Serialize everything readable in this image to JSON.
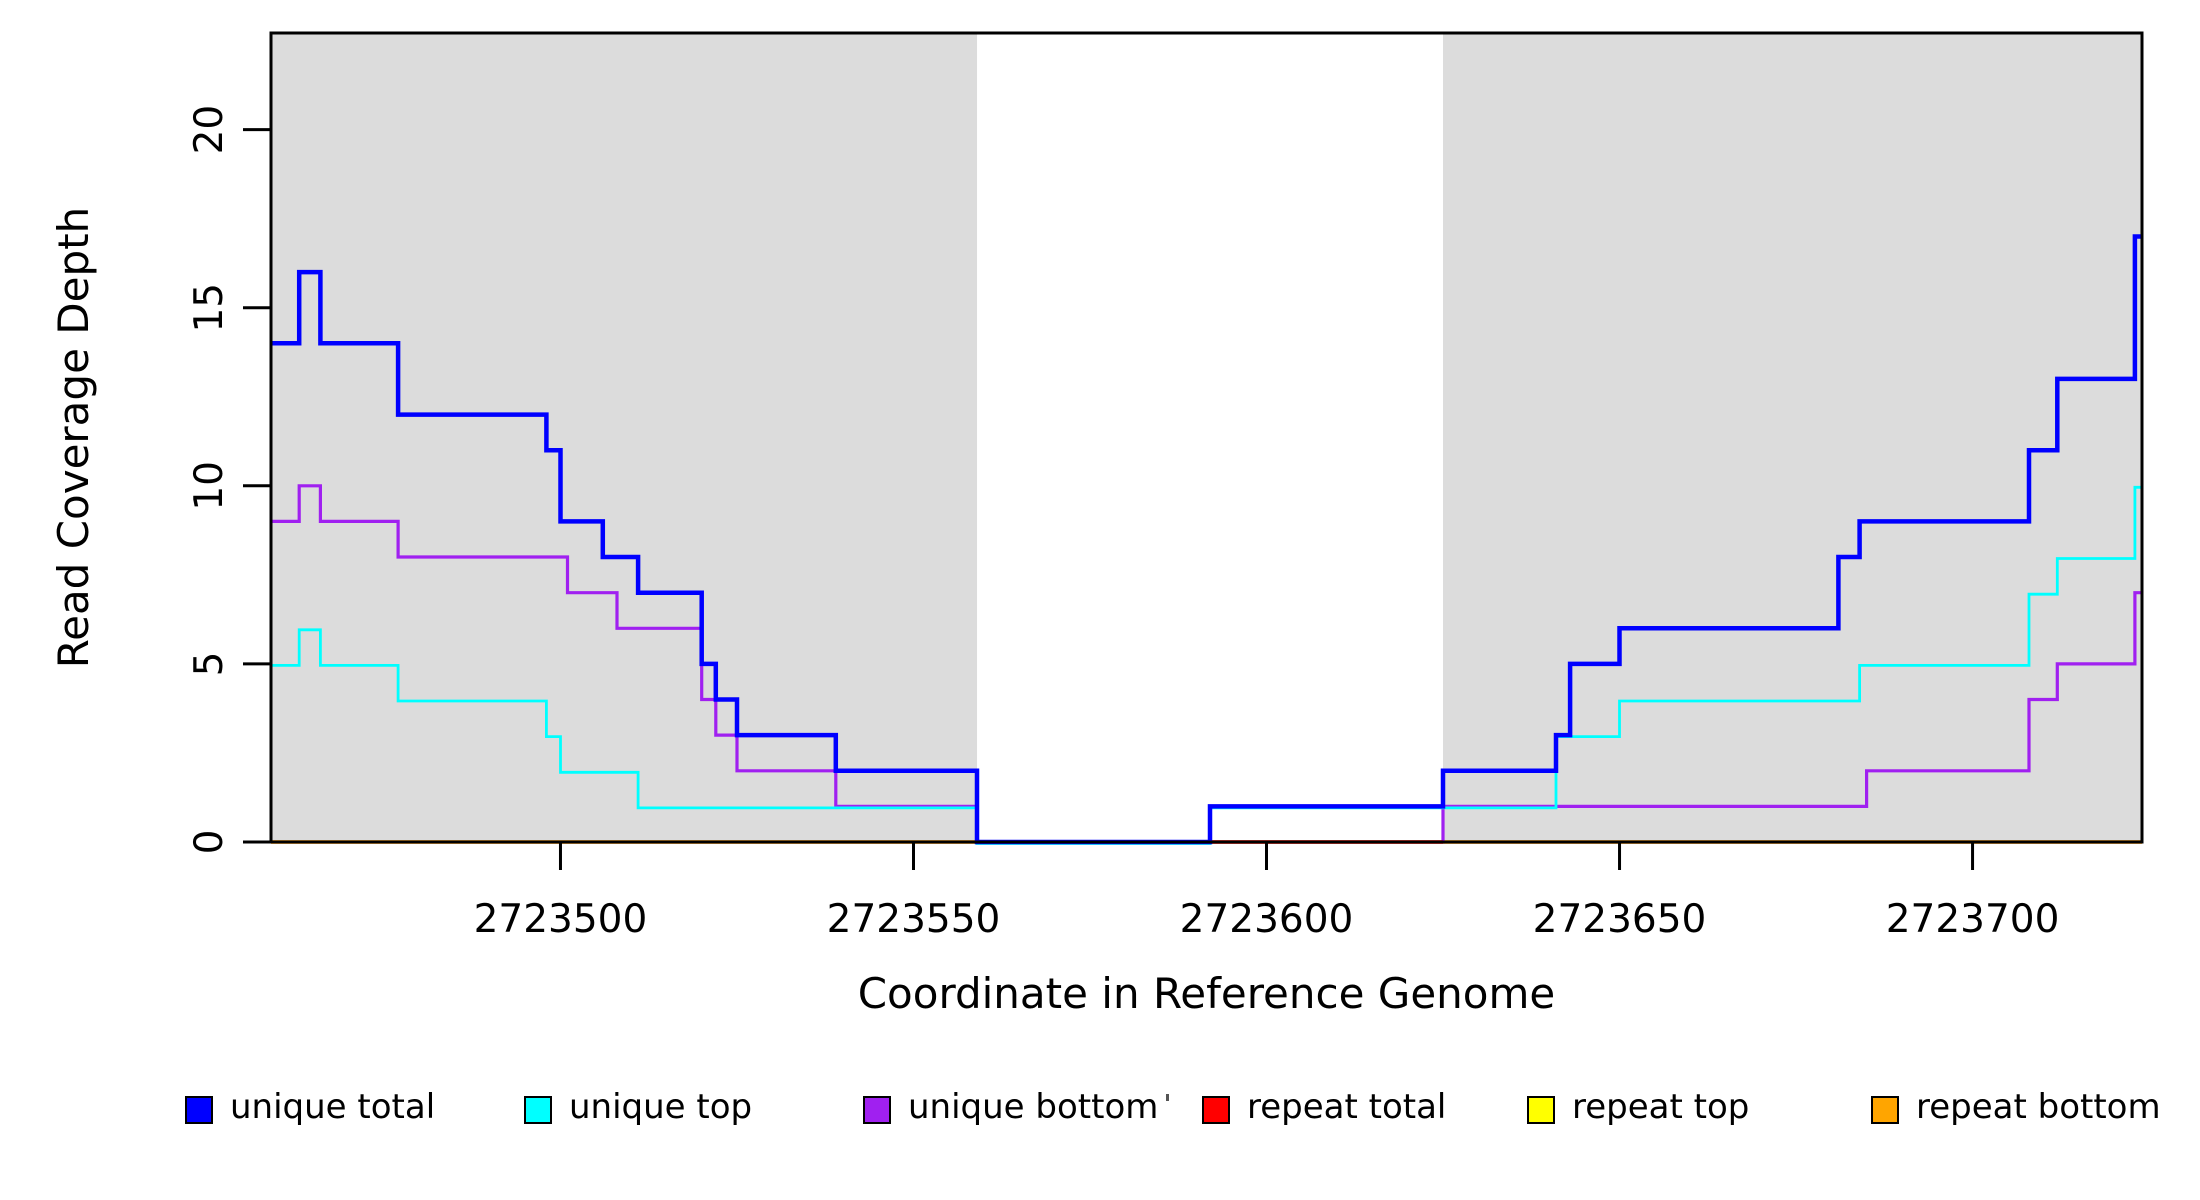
{
  "chart_data": {
    "type": "line",
    "subtype": "step",
    "title": "",
    "xlabel": "Coordinate in Reference Genome",
    "ylabel": "Read Coverage Depth",
    "x_domain": [
      2723459,
      2723724
    ],
    "y_domain": [
      0,
      22.7
    ],
    "grid": false,
    "x_ticks": [
      {
        "value": 2723500,
        "label": "2723500"
      },
      {
        "value": 2723550,
        "label": "2723550"
      },
      {
        "value": 2723600,
        "label": "2723600"
      },
      {
        "value": 2723650,
        "label": "2723650"
      },
      {
        "value": 2723700,
        "label": "2723700"
      }
    ],
    "y_ticks": [
      {
        "value": 0,
        "label": "0"
      },
      {
        "value": 5,
        "label": "5"
      },
      {
        "value": 10,
        "label": "10"
      },
      {
        "value": 15,
        "label": "15"
      },
      {
        "value": 20,
        "label": "20"
      }
    ],
    "shaded_regions": [
      {
        "from": 2723459,
        "to": 2723559,
        "color": "#DCDCDC"
      },
      {
        "from": 2723625,
        "to": 2723724,
        "color": "#DCDCDC"
      }
    ],
    "series": [
      {
        "name": "unique total",
        "color": "#0000FF",
        "line_width": 4.5,
        "start_value": 14,
        "transitions": [
          [
            2723463,
            16
          ],
          [
            2723466,
            14
          ],
          [
            2723477,
            12
          ],
          [
            2723498,
            11
          ],
          [
            2723500,
            9
          ],
          [
            2723506,
            8
          ],
          [
            2723511,
            7
          ],
          [
            2723520,
            5
          ],
          [
            2723522,
            4
          ],
          [
            2723525,
            3
          ],
          [
            2723539,
            2
          ],
          [
            2723559,
            0
          ],
          [
            2723592,
            1
          ],
          [
            2723625,
            2
          ],
          [
            2723641,
            3
          ],
          [
            2723643,
            5
          ],
          [
            2723650,
            6
          ],
          [
            2723681,
            8
          ],
          [
            2723684,
            9
          ],
          [
            2723708,
            11
          ],
          [
            2723712,
            13
          ],
          [
            2723723,
            17
          ]
        ]
      },
      {
        "name": "unique top",
        "color": "#00FFFF",
        "line_width": 2.8,
        "start_value": 5,
        "transitions": [
          [
            2723463,
            6
          ],
          [
            2723466,
            5
          ],
          [
            2723477,
            4
          ],
          [
            2723498,
            3
          ],
          [
            2723500,
            2
          ],
          [
            2723511,
            1
          ],
          [
            2723559,
            0
          ],
          [
            2723592,
            1
          ],
          [
            2723641,
            3
          ],
          [
            2723650,
            4
          ],
          [
            2723684,
            5
          ],
          [
            2723708,
            7
          ],
          [
            2723712,
            8
          ],
          [
            2723723,
            10
          ]
        ]
      },
      {
        "name": "unique bottom",
        "color": "#A020F0",
        "line_width": 3.2,
        "start_value": 9,
        "transitions": [
          [
            2723463,
            10
          ],
          [
            2723466,
            9
          ],
          [
            2723477,
            8
          ],
          [
            2723501,
            7
          ],
          [
            2723508,
            6
          ],
          [
            2723520,
            4
          ],
          [
            2723522,
            3
          ],
          [
            2723525,
            2
          ],
          [
            2723539,
            1
          ],
          [
            2723559,
            0
          ],
          [
            2723625,
            1
          ],
          [
            2723685,
            2
          ],
          [
            2723708,
            4
          ],
          [
            2723712,
            5
          ],
          [
            2723723,
            7
          ]
        ]
      },
      {
        "name": "repeat total",
        "color": "#FF0000",
        "line_width": 3.2,
        "start_value": 0,
        "transitions": []
      },
      {
        "name": "repeat top",
        "color": "#FFFF00",
        "line_width": 3.2,
        "start_value": 0,
        "transitions": []
      },
      {
        "name": "repeat bottom",
        "color": "#FFA500",
        "line_width": 3.6,
        "start_value": 0,
        "transitions": []
      }
    ],
    "red_zero_overlay": {
      "from": 2723592,
      "to": 2723625,
      "value": 0
    },
    "legend": {
      "position": "bottom",
      "items": [
        {
          "label": "unique total",
          "color": "#0000FF"
        },
        {
          "label": "unique top",
          "color": "#00FFFF"
        },
        {
          "label": "unique bottom",
          "color": "#A020F0"
        },
        {
          "label": "repeat total",
          "color": "#FF0000"
        },
        {
          "label": "repeat top",
          "color": "#FFFF00"
        },
        {
          "label": "repeat bottom",
          "color": "#FFA500"
        }
      ]
    }
  }
}
